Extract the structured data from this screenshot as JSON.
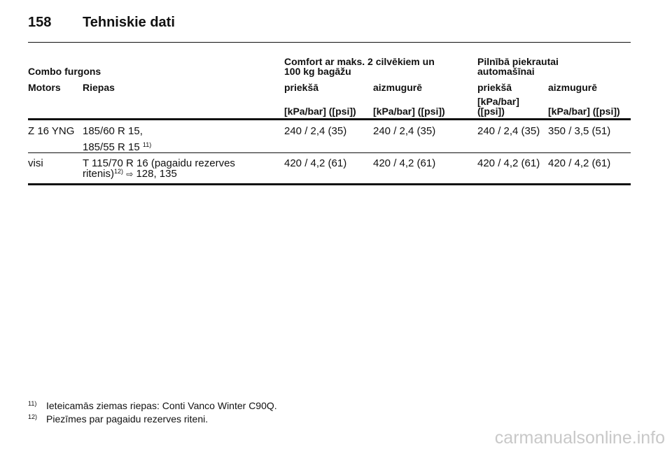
{
  "page": {
    "number": "158",
    "title": "Tehniskie dati"
  },
  "table": {
    "group_label": "Combo furgons",
    "group_comfort": [
      "Comfort ar maks. 2 cilvēkiem un",
      "100 kg bagāžu"
    ],
    "group_full": [
      "Pilnībā piekrautai",
      "automašīnai"
    ],
    "columns": [
      "Motors",
      "Riepas",
      "priekšā",
      "aizmugurē",
      "priekšā",
      "aizmugurē"
    ],
    "units": [
      "[kPa/bar] ([psi])",
      "[kPa/bar] ([psi])",
      "[kPa/bar]",
      "([psi])",
      "[kPa/bar] ([psi])"
    ],
    "rows": [
      {
        "motor": "Z 16 YNG",
        "tyres_line1": "185/60 R 15,",
        "tyres_line2": "185/55 R 15",
        "tyres_ref": "11)",
        "values": [
          "240 / 2,4 (35)",
          "240 / 2,4 (35)",
          "240 / 2,4 (35)",
          "350 / 3,5 (51)"
        ]
      },
      {
        "motor": "visi",
        "tyres_line1": "T 115/70 R 16 (pagaidu rezerves",
        "tyres_line2": "ritenis)",
        "tyres_ref": "12)",
        "tyres_arrow": "⇨",
        "tyres_pages": "128, 135",
        "values": [
          "420 / 4,2 (61)",
          "420 / 4,2 (61)",
          "420 / 4,2 (61)",
          "420 / 4,2 (61)"
        ]
      }
    ]
  },
  "footnotes": [
    {
      "mark": "11)",
      "text": "Ieteicamās ziemas riepas: Conti Vanco Winter C90Q."
    },
    {
      "mark": "12)",
      "text": "Piezīmes par pagaidu rezerves riteni."
    }
  ],
  "watermark": "carmanualsonline.info"
}
